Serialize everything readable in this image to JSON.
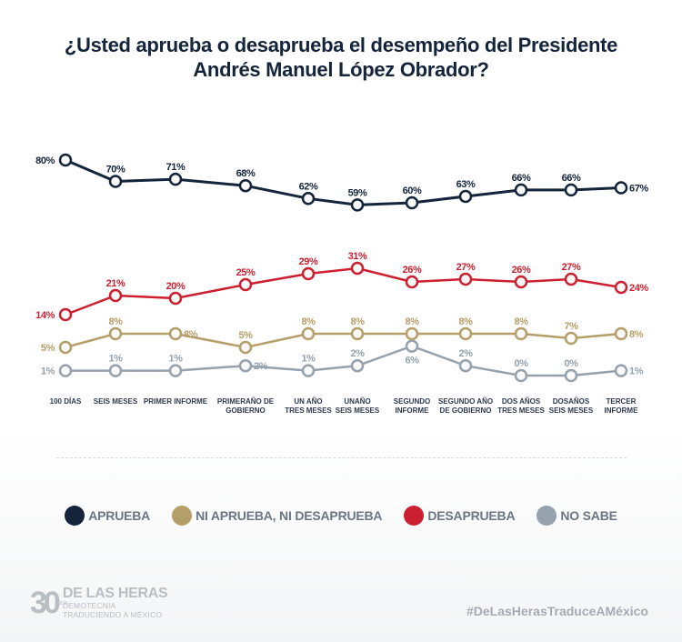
{
  "title_lines": [
    "¿Usted aprueba o desaprueba el desempeño del Presidente",
    "Andrés Manuel López Obrador?"
  ],
  "chart_data": {
    "type": "line",
    "title": "¿Usted aprueba o desaprueba el desempeño del Presidente Andrés Manuel López Obrador?",
    "xlabel": "",
    "ylabel": "",
    "grid": false,
    "legend_position": "bottom",
    "categories": [
      "100 DÍAS",
      "SEIS MESES",
      "PRIMER INFORME",
      "PRIMERAÑO DE GOBIERNO",
      "UN AÑO TRES MESES",
      "UNAÑO SEIS MESES",
      "SEGUNDO INFORME",
      "SEGUNDO AÑO DE GOBIERNO",
      "DOS AÑOS TRES MESES",
      "DOSAÑOS SEIS MESES",
      "TERCER INFORME"
    ],
    "category_lines": [
      [
        "100 DÍAS"
      ],
      [
        "SEIS MESES"
      ],
      [
        "PRIMER INFORME"
      ],
      [
        "PRIMERAÑO DE",
        "GOBIERNO"
      ],
      [
        "UN AÑO",
        "TRES MESES"
      ],
      [
        "UNAÑO",
        "SEIS MESES"
      ],
      [
        "SEGUNDO",
        "INFORME"
      ],
      [
        "SEGUNDO AÑO",
        "DE GOBIERNO"
      ],
      [
        "DOS AÑOS",
        "TRES MESES"
      ],
      [
        "DOSAÑOS",
        "SEIS MESES"
      ],
      [
        "TERCER",
        "INFORME"
      ]
    ],
    "series": [
      {
        "name": "APRUEBA",
        "color": "#13243b",
        "values": [
          80,
          70,
          71,
          68,
          62,
          59,
          60,
          63,
          66,
          66,
          67
        ]
      },
      {
        "name": "NI APRUEBA, NI DESAPRUEBA",
        "color": "#b49f68",
        "values": [
          5,
          8,
          8,
          5,
          8,
          8,
          8,
          8,
          8,
          7,
          8
        ]
      },
      {
        "name": "DESAPRUEBA",
        "color": "#cc1f2f",
        "values": [
          14,
          21,
          20,
          25,
          29,
          31,
          26,
          27,
          26,
          27,
          24
        ]
      },
      {
        "name": "NO SABE",
        "color": "#95a1ad",
        "values": [
          1,
          1,
          1,
          2,
          1,
          2,
          6,
          2,
          0,
          0,
          1
        ]
      }
    ],
    "value_suffix": "%"
  },
  "footer": {
    "logo_number": "30",
    "logo_anos": "AÑOS",
    "logo_name": "DE LAS HERAS",
    "logo_sub1": "DEMOTECNIA",
    "logo_sub2": "TRADUCIENDO A MÉXICO",
    "hashtag": "#DeLasHerasTraduceAMéxico"
  }
}
